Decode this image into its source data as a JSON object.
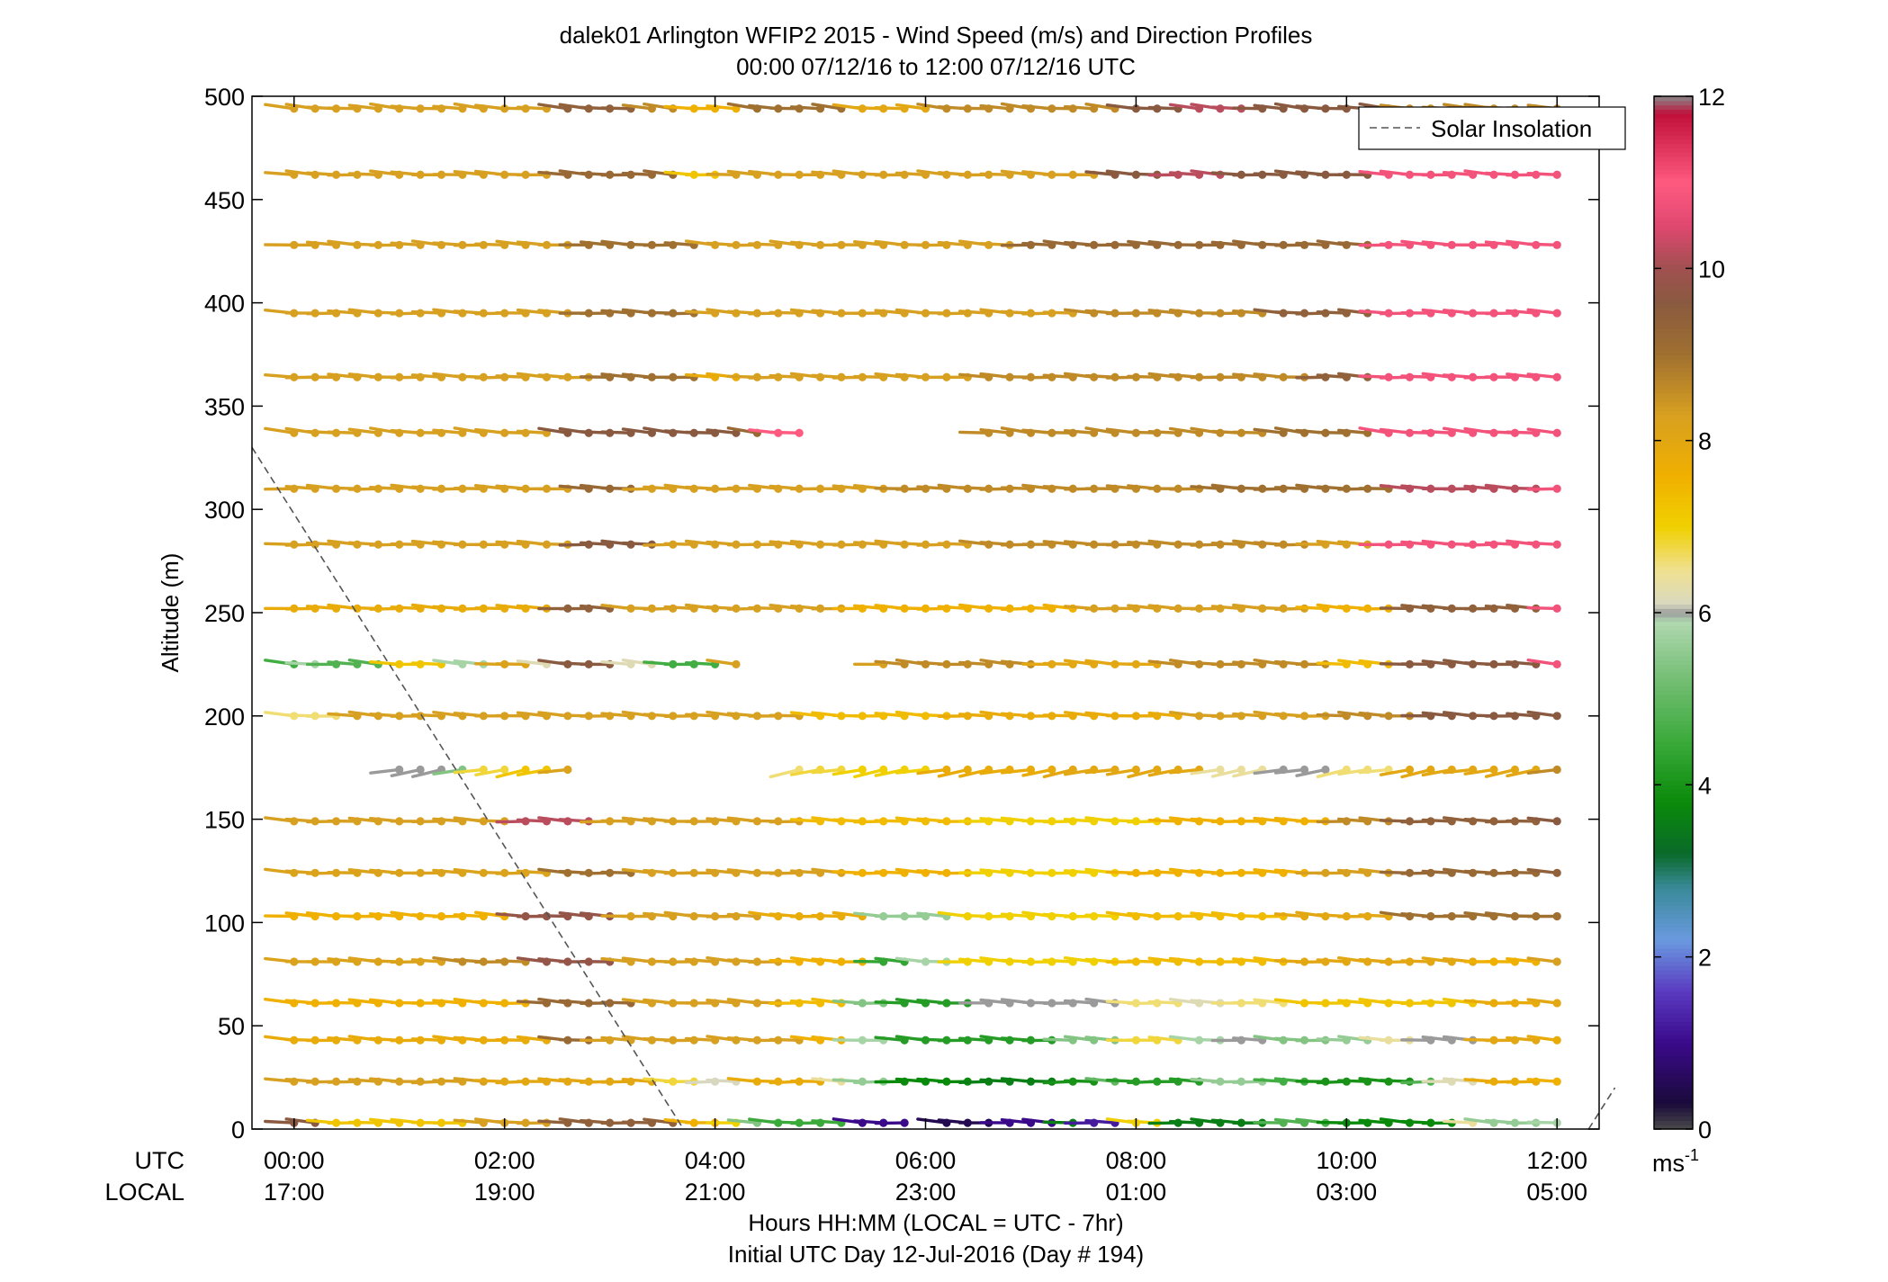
{
  "chart_data": {
    "type": "wind-barb-profile",
    "title": "dalek01 Arlington WFIP2 2015 - Wind Speed (m/s) and Direction Profiles",
    "subtitle": "00:00 07/12/16 to 12:00 07/12/16  UTC",
    "ylabel": "Altitude (m)",
    "ylim": [
      0,
      500
    ],
    "y_ticks": [
      "0",
      "50",
      "100",
      "150",
      "200",
      "250",
      "300",
      "350",
      "400",
      "450",
      "500"
    ],
    "x_range_hours": [
      -0.4,
      12.4
    ],
    "x_tick_hours": [
      0,
      2,
      4,
      6,
      8,
      10,
      12
    ],
    "utc_label": "UTC",
    "local_label": "LOCAL",
    "utc_ticks": [
      "00:00",
      "02:00",
      "04:00",
      "06:00",
      "08:00",
      "10:00",
      "12:00"
    ],
    "local_ticks": [
      "17:00",
      "19:00",
      "21:00",
      "23:00",
      "01:00",
      "03:00",
      "05:00"
    ],
    "xlabel": "Hours HH:MM  (LOCAL = UTC - 7hr)",
    "xlabel2": "Initial UTC Day 12-Jul-2016 (Day # 194)",
    "legend": {
      "entry": "Solar Insolation",
      "placement": "top-right",
      "style": "dashed"
    },
    "solar_insolation_line": {
      "x": [
        -0.4,
        3.7
      ],
      "y": [
        330,
        0
      ]
    },
    "solar_insolation_line_2": {
      "x": [
        12.3,
        12.55
      ],
      "y": [
        0,
        20
      ]
    },
    "colorbar": {
      "ticks": [
        "0",
        "2",
        "4",
        "6",
        "8",
        "10",
        "12"
      ],
      "units": "ms",
      "units_exponent": "-1",
      "min": 0,
      "max": 12,
      "stops": [
        {
          "v": 0,
          "c": "#4a4a4a"
        },
        {
          "v": 0.3,
          "c": "#1a0a3a"
        },
        {
          "v": 1,
          "c": "#3a0a8a"
        },
        {
          "v": 1.6,
          "c": "#5a3ac0"
        },
        {
          "v": 2.2,
          "c": "#6a9ae0"
        },
        {
          "v": 2.8,
          "c": "#3a8a9a"
        },
        {
          "v": 3.2,
          "c": "#0a6a2a"
        },
        {
          "v": 3.8,
          "c": "#0a8a0a"
        },
        {
          "v": 4.5,
          "c": "#3aaa3a"
        },
        {
          "v": 5.3,
          "c": "#7ac07a"
        },
        {
          "v": 5.9,
          "c": "#b0d8b0"
        },
        {
          "v": 6.0,
          "c": "#9a9a9a"
        },
        {
          "v": 6.1,
          "c": "#d8d8c0"
        },
        {
          "v": 6.5,
          "c": "#f0e090"
        },
        {
          "v": 7.0,
          "c": "#f0d000"
        },
        {
          "v": 7.6,
          "c": "#f0b000"
        },
        {
          "v": 8.3,
          "c": "#d8a020"
        },
        {
          "v": 9.0,
          "c": "#a07030"
        },
        {
          "v": 9.6,
          "c": "#8a5a40"
        },
        {
          "v": 10.0,
          "c": "#a05050"
        },
        {
          "v": 10.5,
          "c": "#e04870"
        },
        {
          "v": 11.0,
          "c": "#ff5a80"
        },
        {
          "v": 11.8,
          "c": "#c0103a"
        },
        {
          "v": 12.0,
          "c": "#888888"
        }
      ]
    },
    "altitudes": [
      3,
      23,
      43,
      61,
      81,
      103,
      124,
      149,
      174,
      200,
      225,
      252,
      283,
      310,
      337,
      364,
      395,
      428,
      462,
      494
    ],
    "time_step_hours": 0.2,
    "profiles": [
      {
        "alt": 3,
        "dir": 80,
        "speed": [
          [
            0,
            9.6
          ],
          [
            0.4,
            7.2
          ],
          [
            1.8,
            8.3
          ],
          [
            2.6,
            9.4
          ],
          [
            3.7,
            7.6
          ],
          [
            4.1,
            7.0
          ],
          [
            4.3,
            5.4
          ],
          [
            4.5,
            4.5
          ],
          [
            5.3,
            1.0
          ],
          [
            5.9,
            0.5
          ],
          [
            6.4,
            0.5
          ],
          [
            6.8,
            1.0
          ],
          [
            7.4,
            3.6
          ],
          [
            7.6,
            1.2
          ],
          [
            8.0,
            7.0
          ],
          [
            8.4,
            3.6
          ],
          [
            9.4,
            4.8
          ],
          [
            10.0,
            3.8
          ],
          [
            11.2,
            6.4
          ],
          [
            11.4,
            5.6
          ],
          [
            12.0,
            5.8
          ]
        ]
      },
      {
        "alt": 23,
        "dir": 85,
        "speed": [
          [
            0,
            8.3
          ],
          [
            2.0,
            8.0
          ],
          [
            3.6,
            6.8
          ],
          [
            3.9,
            6.1
          ],
          [
            4.3,
            7.8
          ],
          [
            5.2,
            6.4
          ],
          [
            5.4,
            5.6
          ],
          [
            5.7,
            3.8
          ],
          [
            6.6,
            3.6
          ],
          [
            7.4,
            4.0
          ],
          [
            7.8,
            5.0
          ],
          [
            8.0,
            4.2
          ],
          [
            8.8,
            5.6
          ],
          [
            9.4,
            4.6
          ],
          [
            9.8,
            4.0
          ],
          [
            10.8,
            4.8
          ],
          [
            11.0,
            6.2
          ],
          [
            11.4,
            7.8
          ],
          [
            12.0,
            7.6
          ]
        ]
      },
      {
        "alt": 43,
        "dir": 80,
        "speed": [
          [
            0,
            7.8
          ],
          [
            2.6,
            9.2
          ],
          [
            3.0,
            8.3
          ],
          [
            5.0,
            7.6
          ],
          [
            5.4,
            5.8
          ],
          [
            5.7,
            4.2
          ],
          [
            7.4,
            5.4
          ],
          [
            8.0,
            6.8
          ],
          [
            8.6,
            5.8
          ],
          [
            9.0,
            6.0
          ],
          [
            9.4,
            5.4
          ],
          [
            10.0,
            5.6
          ],
          [
            10.4,
            6.4
          ],
          [
            10.8,
            6.0
          ],
          [
            11.4,
            8.0
          ],
          [
            12.0,
            7.8
          ]
        ]
      },
      {
        "alt": 61,
        "dir": 80,
        "speed": [
          [
            0,
            7.6
          ],
          [
            2.4,
            9.2
          ],
          [
            3.4,
            8.3
          ],
          [
            4.8,
            7.4
          ],
          [
            5.4,
            5.4
          ],
          [
            5.8,
            4.2
          ],
          [
            6.6,
            6.0
          ],
          [
            8.0,
            6.6
          ],
          [
            8.6,
            6.2
          ],
          [
            9.0,
            6.6
          ],
          [
            9.6,
            7.2
          ],
          [
            11.4,
            7.8
          ],
          [
            12.0,
            8.0
          ]
        ]
      },
      {
        "alt": 81,
        "dir": 80,
        "speed": [
          [
            0,
            8.2
          ],
          [
            1.6,
            8.6
          ],
          [
            2.4,
            9.8
          ],
          [
            3.2,
            8.3
          ],
          [
            4.8,
            7.6
          ],
          [
            5.6,
            4.4
          ],
          [
            6.0,
            5.8
          ],
          [
            6.4,
            7.0
          ],
          [
            8.0,
            7.4
          ],
          [
            9.6,
            8.0
          ],
          [
            11.4,
            7.6
          ],
          [
            12.0,
            8.3
          ]
        ]
      },
      {
        "alt": 103,
        "dir": 80,
        "speed": [
          [
            -0.2,
            5.9
          ],
          [
            0,
            7.6
          ],
          [
            2.2,
            9.8
          ],
          [
            3.2,
            8.3
          ],
          [
            4.6,
            7.8
          ],
          [
            5.6,
            5.6
          ],
          [
            6.4,
            7.0
          ],
          [
            8.0,
            7.4
          ],
          [
            9.6,
            8.0
          ],
          [
            10.6,
            9.0
          ],
          [
            12.0,
            9.0
          ]
        ]
      },
      {
        "alt": 124,
        "dir": 82,
        "speed": [
          [
            0,
            8.2
          ],
          [
            2.6,
            9.0
          ],
          [
            3.4,
            8.3
          ],
          [
            5.4,
            7.6
          ],
          [
            6.6,
            7.0
          ],
          [
            8.0,
            7.6
          ],
          [
            9.8,
            8.3
          ],
          [
            10.6,
            9.2
          ],
          [
            12.0,
            9.4
          ]
        ]
      },
      {
        "alt": 149,
        "dir": 82,
        "speed": [
          [
            0,
            8.3
          ],
          [
            2.2,
            10.2
          ],
          [
            3.0,
            8.3
          ],
          [
            5.0,
            7.4
          ],
          [
            6.6,
            7.0
          ],
          [
            8.4,
            7.6
          ],
          [
            10.0,
            8.6
          ],
          [
            10.6,
            9.4
          ],
          [
            12.0,
            9.6
          ]
        ]
      },
      {
        "alt": 174,
        "dir": 55,
        "speed": [
          [
            1.0,
            6.0
          ],
          [
            1.6,
            5.4
          ],
          [
            1.8,
            6.8
          ],
          [
            2.2,
            7.2
          ],
          [
            2.5,
            8.2
          ],
          [
            4.8,
            6.6
          ],
          [
            5.0,
            6.8
          ],
          [
            5.4,
            7.0
          ],
          [
            6.2,
            7.8
          ],
          [
            7.4,
            8.0
          ],
          [
            8.8,
            6.4
          ],
          [
            9.4,
            6.0
          ],
          [
            9.6,
            6.0
          ],
          [
            10.0,
            6.6
          ],
          [
            10.6,
            8.0
          ],
          [
            12.0,
            8.6
          ]
        ]
      },
      {
        "alt": 200,
        "dir": 80,
        "speed": [
          [
            0,
            6.6
          ],
          [
            0.6,
            8.3
          ],
          [
            3.4,
            8.3
          ],
          [
            5.0,
            7.4
          ],
          [
            6.4,
            7.8
          ],
          [
            8.6,
            8.3
          ],
          [
            10.0,
            8.6
          ],
          [
            10.8,
            9.6
          ],
          [
            12.0,
            9.6
          ]
        ]
      },
      {
        "alt": 225,
        "dir": 78,
        "speed": [
          [
            0,
            4.6
          ],
          [
            0.2,
            5.8
          ],
          [
            0.4,
            4.8
          ],
          [
            1.0,
            7.2
          ],
          [
            1.6,
            5.8
          ],
          [
            2.0,
            8.2
          ],
          [
            2.4,
            6.2
          ],
          [
            2.6,
            9.6
          ],
          [
            3.2,
            6.2
          ],
          [
            3.6,
            4.6
          ],
          [
            4.2,
            8.3
          ],
          [
            5.8,
            8.6
          ],
          [
            7.2,
            8.0
          ],
          [
            8.4,
            8.6
          ],
          [
            10.0,
            7.4
          ],
          [
            10.6,
            9.6
          ],
          [
            12.0,
            10.8
          ]
        ]
      },
      {
        "alt": 252,
        "dir": 82,
        "speed": [
          [
            0,
            7.8
          ],
          [
            2.6,
            9.4
          ],
          [
            3.2,
            8.3
          ],
          [
            5.4,
            7.6
          ],
          [
            7.6,
            8.3
          ],
          [
            9.8,
            7.6
          ],
          [
            10.6,
            9.4
          ],
          [
            12.0,
            10.8
          ]
        ]
      },
      {
        "alt": 283,
        "dir": 82,
        "speed": [
          [
            0,
            8.3
          ],
          [
            2.8,
            9.6
          ],
          [
            3.6,
            8.3
          ],
          [
            6.6,
            8.6
          ],
          [
            9.8,
            8.3
          ],
          [
            10.4,
            10.8
          ],
          [
            12.0,
            10.8
          ]
        ]
      },
      {
        "alt": 310,
        "dir": 82,
        "speed": [
          [
            0,
            8.3
          ],
          [
            2.8,
            9.2
          ],
          [
            3.4,
            8.3
          ],
          [
            5.8,
            8.6
          ],
          [
            8.8,
            9.0
          ],
          [
            10.6,
            10.2
          ],
          [
            12.0,
            10.8
          ]
        ]
      },
      {
        "alt": 337,
        "dir": 74,
        "speed": [
          [
            0,
            8.3
          ],
          [
            2.6,
            9.6
          ],
          [
            4.4,
            9.2
          ],
          [
            4.6,
            11.0
          ],
          [
            4.9,
            11.0
          ],
          [
            6.6,
            8.6
          ],
          [
            9.4,
            9.0
          ],
          [
            10.4,
            10.8
          ],
          [
            12.0,
            10.8
          ]
        ]
      },
      {
        "alt": 364,
        "dir": 82,
        "speed": [
          [
            0,
            8.3
          ],
          [
            3.0,
            9.0
          ],
          [
            4.0,
            7.8
          ],
          [
            4.4,
            8.3
          ],
          [
            6.6,
            8.6
          ],
          [
            9.8,
            9.4
          ],
          [
            10.4,
            10.8
          ],
          [
            12.0,
            10.8
          ]
        ]
      },
      {
        "alt": 395,
        "dir": 82,
        "speed": [
          [
            0,
            8.3
          ],
          [
            2.8,
            9.0
          ],
          [
            4.0,
            8.3
          ],
          [
            7.6,
            8.6
          ],
          [
            9.4,
            9.4
          ],
          [
            10.4,
            10.8
          ],
          [
            12.0,
            10.8
          ]
        ]
      },
      {
        "alt": 428,
        "dir": 80,
        "speed": [
          [
            0,
            8.3
          ],
          [
            2.8,
            9.0
          ],
          [
            4.0,
            8.3
          ],
          [
            7.0,
            9.2
          ],
          [
            10.4,
            10.8
          ],
          [
            12.0,
            10.8
          ]
        ]
      },
      {
        "alt": 462,
        "dir": 80,
        "speed": [
          [
            0,
            8.3
          ],
          [
            2.6,
            9.2
          ],
          [
            3.8,
            7.2
          ],
          [
            4.2,
            8.3
          ],
          [
            7.8,
            9.6
          ],
          [
            8.4,
            10.2
          ],
          [
            9.0,
            9.6
          ],
          [
            10.4,
            10.8
          ],
          [
            12.0,
            10.8
          ]
        ]
      },
      {
        "alt": 494,
        "dir": 75,
        "speed": [
          [
            0,
            8.3
          ],
          [
            2.6,
            9.4
          ],
          [
            3.4,
            8.6
          ],
          [
            3.8,
            7.6
          ],
          [
            4.4,
            9.0
          ],
          [
            5.4,
            8.0
          ],
          [
            6.2,
            8.6
          ],
          [
            8.0,
            9.6
          ],
          [
            8.6,
            10.2
          ],
          [
            9.2,
            9.6
          ],
          [
            10.6,
            8.6
          ],
          [
            11.0,
            8.6
          ],
          [
            12.0,
            8.6
          ]
        ]
      }
    ]
  }
}
